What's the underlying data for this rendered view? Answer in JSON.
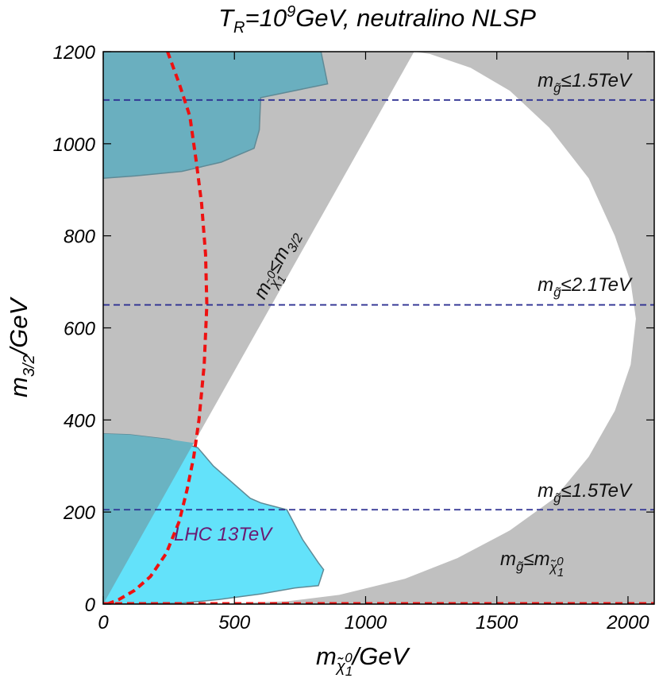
{
  "chart_data": {
    "type": "area",
    "title": {
      "prefix": "T",
      "prefix_sub": "R",
      "middle": "=10",
      "middle_sup": "9",
      "suffix": "GeV, neutralino NLSP"
    },
    "xlabel": {
      "main": "m",
      "sub": "χ̃",
      "subsub": "1",
      "subsup": "0",
      "suffix": "/GeV"
    },
    "ylabel": {
      "main": "m",
      "sub": "3/2",
      "suffix": "/GeV"
    },
    "xlim": [
      0,
      2100
    ],
    "ylim": [
      0,
      1200
    ],
    "xticks": [
      0,
      500,
      1000,
      1500,
      2000
    ],
    "yticks": [
      0,
      200,
      400,
      600,
      800,
      1000,
      1200
    ],
    "xtick_labels": [
      "0",
      "500",
      "1000",
      "1500",
      "2000"
    ],
    "ytick_labels": [
      "0",
      "200",
      "400",
      "600",
      "800",
      "1000",
      "1200"
    ],
    "colors": {
      "excluded": "#c0c0c0",
      "allowed": "#ffffff",
      "lhc_region": "#63e2fa",
      "upper_region": "#6aafbf",
      "overlap_region": "#6ab3c2",
      "region_edge": "#5f8a96",
      "gluino_lines": "#2e3192",
      "red_curve": "#ee1111"
    },
    "allowed_boundary": [
      [
        0,
        0
      ],
      [
        1185,
        1200
      ],
      [
        1245,
        1195
      ],
      [
        1400,
        1165
      ],
      [
        1550,
        1115
      ],
      [
        1700,
        1035
      ],
      [
        1850,
        925
      ],
      [
        1950,
        800
      ],
      [
        2010,
        700
      ],
      [
        2030,
        620
      ],
      [
        2010,
        520
      ],
      [
        1950,
        420
      ],
      [
        1850,
        320
      ],
      [
        1720,
        230
      ],
      [
        1550,
        160
      ],
      [
        1350,
        100
      ],
      [
        1150,
        55
      ],
      [
        900,
        20
      ],
      [
        700,
        6
      ],
      [
        400,
        0
      ]
    ],
    "lhc_region": [
      [
        0,
        370
      ],
      [
        100,
        368
      ],
      [
        250,
        358
      ],
      [
        360,
        340
      ],
      [
        420,
        300
      ],
      [
        560,
        230
      ],
      [
        600,
        220
      ],
      [
        700,
        205
      ],
      [
        760,
        140
      ],
      [
        820,
        90
      ],
      [
        840,
        75
      ],
      [
        820,
        40
      ],
      [
        730,
        35
      ],
      [
        600,
        22
      ],
      [
        440,
        10
      ],
      [
        300,
        2
      ],
      [
        0,
        0
      ]
    ],
    "upper_region": [
      [
        0,
        1200
      ],
      [
        830,
        1200
      ],
      [
        855,
        1130
      ],
      [
        600,
        1100
      ],
      [
        595,
        1030
      ],
      [
        575,
        990
      ],
      [
        450,
        960
      ],
      [
        300,
        940
      ],
      [
        120,
        930
      ],
      [
        0,
        925
      ]
    ],
    "red_curve": [
      [
        15,
        0
      ],
      [
        60,
        10
      ],
      [
        120,
        30
      ],
      [
        180,
        60
      ],
      [
        240,
        110
      ],
      [
        290,
        180
      ],
      [
        320,
        250
      ],
      [
        345,
        320
      ],
      [
        365,
        400
      ],
      [
        385,
        520
      ],
      [
        395,
        650
      ],
      [
        390,
        760
      ],
      [
        375,
        870
      ],
      [
        355,
        960
      ],
      [
        330,
        1060
      ],
      [
        290,
        1130
      ],
      [
        245,
        1200
      ]
    ],
    "gluino_lines": [
      {
        "y": 1095,
        "label_main": "m",
        "label_sub": "g̃",
        "label_rest": "≤1.5TeV"
      },
      {
        "y": 650,
        "label_main": "m",
        "label_sub": "g̃",
        "label_rest": "≤2.1TeV"
      },
      {
        "y": 205,
        "label_main": "m",
        "label_sub": "g̃",
        "label_rest": "≤1.5TeV"
      }
    ],
    "annotations": {
      "lhc_label": "LHC 13TeV",
      "diag_label": {
        "main": "m",
        "sub": "χ̃",
        "subsub": "1",
        "subsup": "0",
        "rest": "≤m",
        "rest_sub": "3/2"
      },
      "gluino_nlsp": {
        "main": "m",
        "sub": "g̃",
        "rest": "≤m",
        "rest_sub": "χ̃",
        "rest_subsub": "1",
        "rest_subsup": "0"
      }
    }
  }
}
